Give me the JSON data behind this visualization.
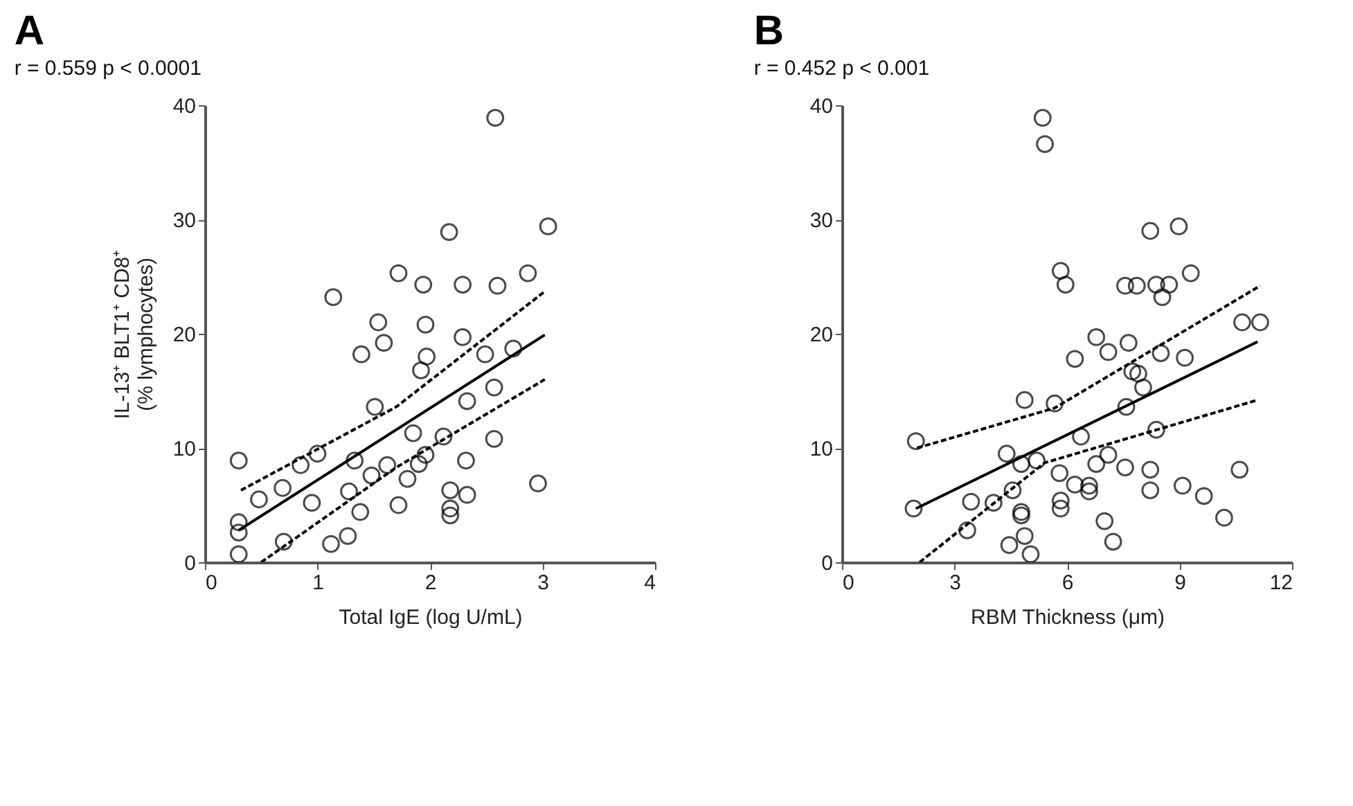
{
  "chart_data": [
    {
      "type": "scatter",
      "title": "A",
      "subtitle": "r = 0.559  p < 0.0001",
      "xlabel": "Total IgE (log U/mL)",
      "ylabel": "IL-13⁺ BLT1⁺ CD8⁺\n(% lymphocytes)",
      "xlim": [
        0,
        4
      ],
      "xticks": [
        0,
        1,
        2,
        3,
        4
      ],
      "ylim": [
        0,
        40
      ],
      "yticks": [
        0,
        10,
        20,
        30,
        40
      ],
      "series": [
        {
          "marker": "circle",
          "color": "#000000",
          "x": [
            0.3,
            0.3,
            0.3,
            0.3,
            0.48,
            0.69,
            0.7,
            0.85,
            0.95,
            1.0,
            1.12,
            1.14,
            1.27,
            1.28,
            1.33,
            1.38,
            1.39,
            1.48,
            1.51,
            1.54,
            1.59,
            1.62,
            1.72,
            1.72,
            1.8,
            1.85,
            1.9,
            1.92,
            1.94,
            1.96,
            1.96,
            1.97,
            2.12,
            2.17,
            2.18,
            2.18,
            2.18,
            2.29,
            2.29,
            2.32,
            2.33,
            2.33,
            2.49,
            2.57,
            2.57,
            2.58,
            2.6,
            2.74,
            2.87,
            2.96,
            3.05
          ],
          "values": [
            8.9,
            3.5,
            2.6,
            0.7,
            5.5,
            6.5,
            1.8,
            8.5,
            5.2,
            9.5,
            1.6,
            23.2,
            2.3,
            6.2,
            8.9,
            4.4,
            18.2,
            7.6,
            13.6,
            21.0,
            19.2,
            8.5,
            25.3,
            5.0,
            7.3,
            11.3,
            8.6,
            16.8,
            24.3,
            9.4,
            20.8,
            18.0,
            11.0,
            28.9,
            6.3,
            4.7,
            4.1,
            24.3,
            19.7,
            8.9,
            14.1,
            5.9,
            18.2,
            15.3,
            10.8,
            38.9,
            24.2,
            18.7,
            25.3,
            6.9,
            29.4
          ]
        },
        {
          "type": "line",
          "line_style": "solid",
          "color": "#000000",
          "x": [
            0.3,
            3.02
          ],
          "values": [
            2.8,
            19.9
          ]
        },
        {
          "type": "line",
          "line_style": "dashed",
          "color": "#000000",
          "x": [
            0.32,
            1.7,
            3.02
          ],
          "values": [
            6.3,
            13.6,
            23.7
          ]
        },
        {
          "type": "line",
          "line_style": "dashed",
          "color": "#000000",
          "x": [
            0.5,
            1.7,
            3.02
          ],
          "values": [
            0,
            8.3,
            16.0
          ]
        }
      ]
    },
    {
      "type": "scatter",
      "title": "B",
      "subtitle": "r = 0.452  p < 0.001",
      "xlabel": "RBM Thickness (μm)",
      "xlim": [
        0,
        12
      ],
      "xticks": [
        0,
        3,
        6,
        9,
        12
      ],
      "ylim": [
        0,
        40
      ],
      "yticks": [
        0,
        10,
        20,
        30,
        40
      ],
      "series": [
        {
          "marker": "circle",
          "color": "#000000",
          "x": [
            1.91,
            1.97,
            3.34,
            3.44,
            4.04,
            4.39,
            4.46,
            4.55,
            4.78,
            4.78,
            4.78,
            4.87,
            4.87,
            5.03,
            5.19,
            5.35,
            5.41,
            5.67,
            5.8,
            5.83,
            5.83,
            5.83,
            5.96,
            6.21,
            6.21,
            6.37,
            6.59,
            6.59,
            6.78,
            6.78,
            7.0,
            7.1,
            7.1,
            7.23,
            7.55,
            7.55,
            7.58,
            7.64,
            7.74,
            7.86,
            7.9,
            8.03,
            8.22,
            8.22,
            8.22,
            8.38,
            8.38,
            8.5,
            8.54,
            8.72,
            8.98,
            9.08,
            9.14,
            9.3,
            9.65,
            10.19,
            10.6,
            10.67,
            11.15
          ],
          "values": [
            4.7,
            10.6,
            2.8,
            5.3,
            5.2,
            9.5,
            1.5,
            6.3,
            8.6,
            4.4,
            4.1,
            14.2,
            2.3,
            0.7,
            8.9,
            38.9,
            36.6,
            13.9,
            7.8,
            25.5,
            5.4,
            4.7,
            24.3,
            17.8,
            6.8,
            11.0,
            6.7,
            6.2,
            19.7,
            8.6,
            3.6,
            18.4,
            9.4,
            1.8,
            24.2,
            8.3,
            13.6,
            19.2,
            16.7,
            24.2,
            16.5,
            15.3,
            29.0,
            8.1,
            6.3,
            24.3,
            11.6,
            18.3,
            23.2,
            24.3,
            29.4,
            6.7,
            17.9,
            25.3,
            5.8,
            3.9,
            8.1,
            21.0,
            21.0
          ]
        },
        {
          "type": "line",
          "line_style": "solid",
          "color": "#000000",
          "x": [
            1.97,
            11.08
          ],
          "values": [
            4.7,
            19.3
          ]
        },
        {
          "type": "line",
          "line_style": "dashed",
          "color": "#000000",
          "x": [
            2.0,
            5.67,
            11.15
          ],
          "values": [
            10.0,
            13.5,
            24.2
          ]
        },
        {
          "type": "line",
          "line_style": "dashed",
          "color": "#000000",
          "x": [
            2.07,
            5.4,
            11.08
          ],
          "values": [
            0,
            8.7,
            14.2
          ]
        }
      ]
    }
  ]
}
